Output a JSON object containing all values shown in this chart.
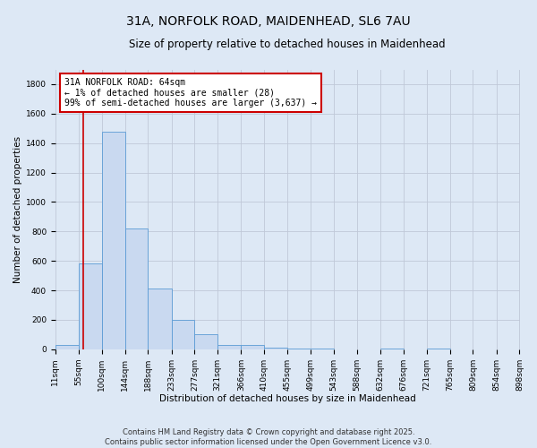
{
  "title_line1": "31A, NORFOLK ROAD, MAIDENHEAD, SL6 7AU",
  "title_line2": "Size of property relative to detached houses in Maidenhead",
  "xlabel": "Distribution of detached houses by size in Maidenhead",
  "ylabel": "Number of detached properties",
  "bin_edges": [
    11,
    55,
    100,
    144,
    188,
    233,
    277,
    321,
    366,
    410,
    455,
    499,
    543,
    588,
    632,
    676,
    721,
    765,
    809,
    854,
    898
  ],
  "bar_heights": [
    28,
    580,
    1480,
    820,
    410,
    200,
    100,
    30,
    30,
    10,
    5,
    2,
    1,
    1,
    5,
    0,
    2,
    0,
    0,
    0
  ],
  "bar_color": "#c9d9f0",
  "bar_edge_color": "#5b9bd5",
  "property_size": 64,
  "annotation_line1": "31A NORFOLK ROAD: 64sqm",
  "annotation_line2": "← 1% of detached houses are smaller (28)",
  "annotation_line3": "99% of semi-detached houses are larger (3,637) →",
  "vline_color": "#cc0000",
  "annotation_box_edge_color": "#cc0000",
  "annotation_box_face_color": "#ffffff",
  "ylim": [
    0,
    1900
  ],
  "yticks": [
    0,
    200,
    400,
    600,
    800,
    1000,
    1200,
    1400,
    1600,
    1800
  ],
  "grid_color": "#c0c8d8",
  "bg_color": "#dde8f5",
  "footer_line1": "Contains HM Land Registry data © Crown copyright and database right 2025.",
  "footer_line2": "Contains public sector information licensed under the Open Government Licence v3.0.",
  "title_fontsize": 10,
  "subtitle_fontsize": 8.5,
  "axis_label_fontsize": 7.5,
  "tick_fontsize": 6.5,
  "annotation_fontsize": 7,
  "footer_fontsize": 6
}
